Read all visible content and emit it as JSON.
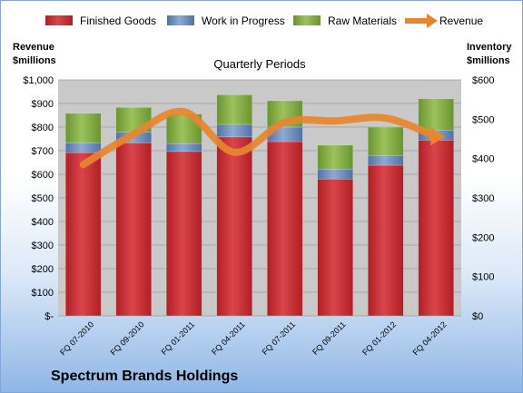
{
  "company_name": "Spectrum Brands Holdings",
  "colors": {
    "finished_goods": "#c0272d",
    "work_in_progress": "#5b7fb5",
    "raw_materials": "#7aa33a",
    "revenue": "#e8862e",
    "plot_background": "#c9c9c9"
  },
  "chart_data": {
    "type": "bar",
    "stacked": true,
    "subtitle": "Quarterly Periods",
    "left_axis_label": [
      "Revenue",
      "$millions"
    ],
    "right_axis_label": [
      "Inventory",
      "$millions"
    ],
    "left_axis": {
      "range": [
        0,
        1000
      ],
      "ticks": [
        {
          "value": 0,
          "label": "$-"
        },
        {
          "value": 100,
          "label": "$100"
        },
        {
          "value": 200,
          "label": "$200"
        },
        {
          "value": 300,
          "label": "$300"
        },
        {
          "value": 400,
          "label": "$400"
        },
        {
          "value": 500,
          "label": "$500"
        },
        {
          "value": 600,
          "label": "$600"
        },
        {
          "value": 700,
          "label": "$700"
        },
        {
          "value": 800,
          "label": "$800"
        },
        {
          "value": 900,
          "label": "$900"
        },
        {
          "value": 1000,
          "label": "$1,000"
        }
      ]
    },
    "right_axis": {
      "range": [
        0,
        600
      ],
      "ticks": [
        {
          "value": 0,
          "label": "$0"
        },
        {
          "value": 100,
          "label": "$100"
        },
        {
          "value": 200,
          "label": "$200"
        },
        {
          "value": 300,
          "label": "$300"
        },
        {
          "value": 400,
          "label": "$400"
        },
        {
          "value": 500,
          "label": "$500"
        },
        {
          "value": 600,
          "label": "$600"
        }
      ]
    },
    "categories": [
      "FQ 07-2010",
      "FQ 09-2010",
      "FQ 01-2011",
      "FQ 04-2011",
      "FQ 07-2011",
      "FQ 09-2011",
      "FQ 01-2012",
      "FQ 04-2012"
    ],
    "series": [
      {
        "name": "Finished Goods",
        "axis": "right",
        "kind": "bar",
        "values": [
          415,
          440,
          418,
          455,
          443,
          348,
          383,
          447
        ]
      },
      {
        "name": "Work in Progress",
        "axis": "right",
        "kind": "bar",
        "values": [
          25,
          27,
          20,
          32,
          37,
          25,
          25,
          25
        ]
      },
      {
        "name": "Raw Materials",
        "axis": "right",
        "kind": "bar",
        "values": [
          75,
          63,
          75,
          75,
          67,
          61,
          72,
          80
        ]
      },
      {
        "name": "Revenue",
        "axis": "left",
        "kind": "line",
        "values": [
          641,
          770,
          865,
          693,
          820,
          826,
          838,
          760
        ]
      }
    ],
    "legend_position": "top"
  }
}
